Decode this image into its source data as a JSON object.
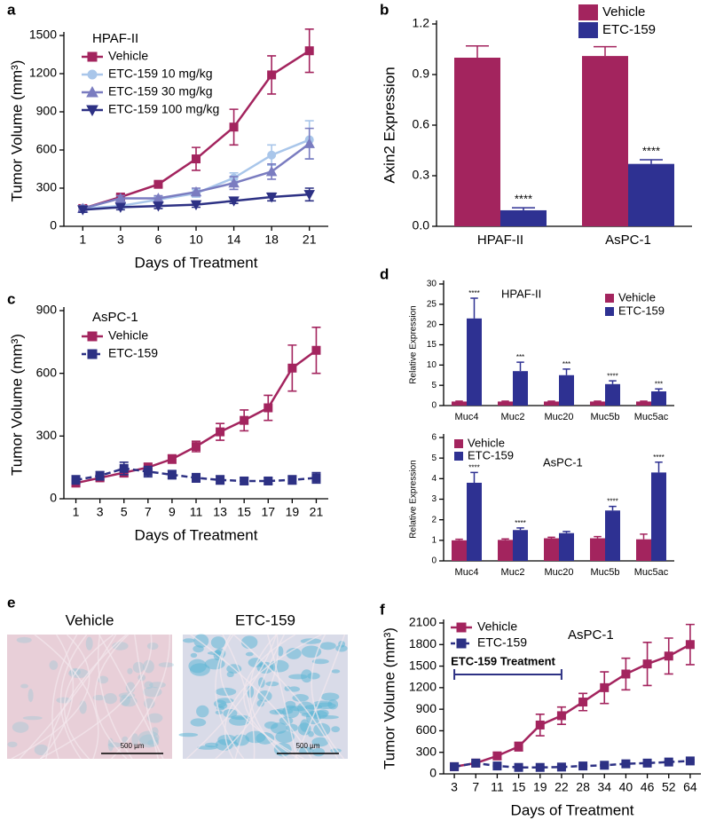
{
  "chart_data": [
    {
      "type": "line",
      "panel": "a",
      "annotation": "HPAF-II",
      "xlabel": "Days of Treatment",
      "ylabel": "Tumor Volume (mm³)",
      "categories": [
        "1",
        "3",
        "6",
        "10",
        "14",
        "18",
        "21"
      ],
      "ylim": [
        0,
        1500
      ],
      "yticks": [
        0,
        300,
        600,
        900,
        1200,
        1500
      ],
      "series": [
        {
          "name": "Vehicle",
          "color": "#a3245e",
          "marker": "square",
          "values": [
            140,
            230,
            330,
            530,
            780,
            1190,
            1380
          ],
          "errors": [
            20,
            20,
            20,
            90,
            140,
            150,
            170
          ]
        },
        {
          "name": "ETC-159 10 mg/kg",
          "color": "#a9c6ea",
          "marker": "circle",
          "values": [
            140,
            160,
            210,
            260,
            380,
            560,
            680
          ],
          "errors": [
            20,
            15,
            20,
            30,
            40,
            80,
            150
          ]
        },
        {
          "name": "ETC-159 30 mg/kg",
          "color": "#7a7cc0",
          "marker": "triangle-up",
          "values": [
            140,
            220,
            220,
            270,
            340,
            430,
            650
          ],
          "errors": [
            20,
            20,
            20,
            30,
            50,
            60,
            120
          ]
        },
        {
          "name": "ETC-159 100 mg/kg",
          "color": "#2d3184",
          "marker": "triangle-down",
          "values": [
            130,
            150,
            160,
            170,
            200,
            230,
            250
          ],
          "errors": [
            20,
            20,
            20,
            20,
            20,
            30,
            50
          ]
        }
      ]
    },
    {
      "type": "bar",
      "panel": "b",
      "ylabel": "Axin2 Expression",
      "categories": [
        "HPAF-II",
        "AsPC-1"
      ],
      "ylim": [
        0,
        1.2
      ],
      "yticks": [
        {
          "value": 0,
          "label": "0.0"
        },
        0.3,
        0.6,
        0.9,
        1.2
      ],
      "series": [
        {
          "name": "Vehicle",
          "color": "#a3245e",
          "values": [
            1.0,
            1.01
          ],
          "errors": [
            0.07,
            0.055
          ]
        },
        {
          "name": "ETC-159",
          "color": "#2e3192",
          "values": [
            0.095,
            0.37
          ],
          "errors": [
            0.015,
            0.025
          ],
          "significance": [
            "****",
            "****"
          ]
        }
      ]
    },
    {
      "type": "line",
      "panel": "c",
      "annotation": "AsPC-1",
      "xlabel": "Days of Treatment",
      "ylabel": "Tumor Volume (mm³)",
      "categories": [
        "1",
        "3",
        "5",
        "7",
        "9",
        "11",
        "13",
        "15",
        "17",
        "19",
        "21"
      ],
      "ylim": [
        0,
        900
      ],
      "yticks": [
        0,
        300,
        600,
        900
      ],
      "series": [
        {
          "name": "Vehicle",
          "color": "#a3245e",
          "marker": "square",
          "values": [
            75,
            100,
            125,
            150,
            190,
            250,
            320,
            375,
            435,
            625,
            710
          ],
          "errors": [
            15,
            15,
            20,
            20,
            20,
            25,
            40,
            50,
            60,
            110,
            110
          ]
        },
        {
          "name": "ETC-159",
          "color": "#2d3184",
          "marker": "square",
          "dashed": true,
          "values": [
            90,
            110,
            145,
            130,
            115,
            100,
            90,
            85,
            85,
            90,
            100
          ],
          "errors": [
            20,
            20,
            30,
            25,
            20,
            20,
            20,
            15,
            15,
            20,
            25
          ]
        }
      ]
    },
    {
      "type": "bar",
      "panel": "d",
      "annotation": "HPAF-II",
      "ylabel": "Relative Expression",
      "categories": [
        "Muc4",
        "Muc2",
        "Muc20",
        "Muc5b",
        "Muc5ac"
      ],
      "ylim": [
        0,
        30
      ],
      "yticks": [
        0,
        5,
        10,
        15,
        20,
        25,
        30
      ],
      "series": [
        {
          "name": "Vehicle",
          "color": "#a3245e",
          "values": [
            1,
            1,
            1,
            1,
            1
          ],
          "errors": [
            0.1,
            0.1,
            0.1,
            0.1,
            0.1
          ]
        },
        {
          "name": "ETC-159",
          "color": "#2e3192",
          "values": [
            21.5,
            8.5,
            7.5,
            5.3,
            3.5
          ],
          "errors": [
            5,
            2.2,
            1.5,
            0.8,
            0.6
          ],
          "significance": [
            "****",
            "***",
            "***",
            "****",
            "***"
          ]
        }
      ]
    },
    {
      "type": "bar",
      "annotation": "AsPC-1",
      "ylabel": "Relative Expression",
      "categories": [
        "Muc4",
        "Muc2",
        "Muc20",
        "Muc5b",
        "Muc5ac"
      ],
      "ylim": [
        0,
        6
      ],
      "yticks": [
        0,
        1,
        2,
        3,
        4,
        5,
        6
      ],
      "series": [
        {
          "name": "Vehicle",
          "color": "#a3245e",
          "values": [
            1,
            1.02,
            1.1,
            1.1,
            1.05
          ],
          "errors": [
            0.05,
            0.05,
            0.05,
            0.08,
            0.25
          ]
        },
        {
          "name": "ETC-159",
          "color": "#2e3192",
          "values": [
            3.8,
            1.5,
            1.35,
            2.45,
            4.3
          ],
          "errors": [
            0.5,
            0.1,
            0.08,
            0.2,
            0.5
          ],
          "significance": [
            "****",
            "****",
            null,
            "****",
            "****"
          ]
        }
      ]
    },
    {
      "type": "image",
      "panel": "e",
      "images": [
        {
          "title": "Vehicle",
          "scale_label": "500 µm"
        },
        {
          "title": "ETC-159",
          "scale_label": "500 µm"
        }
      ]
    },
    {
      "type": "line",
      "panel": "f",
      "annotation": "AsPC-1",
      "bracket_label": "ETC-159 Treatment",
      "xlabel": "Days of Treatment",
      "ylabel": "Tumor Volume (mm³)",
      "categories": [
        "3",
        "7",
        "11",
        "15",
        "19",
        "22",
        "28",
        "34",
        "40",
        "46",
        "52",
        "64"
      ],
      "ylim": [
        0,
        2100
      ],
      "yticks": [
        0,
        300,
        600,
        900,
        1200,
        1500,
        1800,
        2100
      ],
      "series": [
        {
          "name": "Vehicle",
          "color": "#a3245e",
          "marker": "square",
          "values": [
            100,
            150,
            250,
            380,
            680,
            810,
            1000,
            1200,
            1390,
            1530,
            1640,
            1800
          ],
          "errors": [
            20,
            20,
            50,
            60,
            150,
            120,
            120,
            220,
            220,
            300,
            250,
            280
          ]
        },
        {
          "name": "ETC-159",
          "color": "#2d3184",
          "marker": "square",
          "dashed": true,
          "values": [
            100,
            150,
            110,
            90,
            90,
            95,
            110,
            120,
            140,
            150,
            165,
            180
          ],
          "errors": [
            10,
            10,
            10,
            10,
            10,
            10,
            10,
            10,
            10,
            10,
            10,
            15
          ]
        }
      ]
    }
  ]
}
